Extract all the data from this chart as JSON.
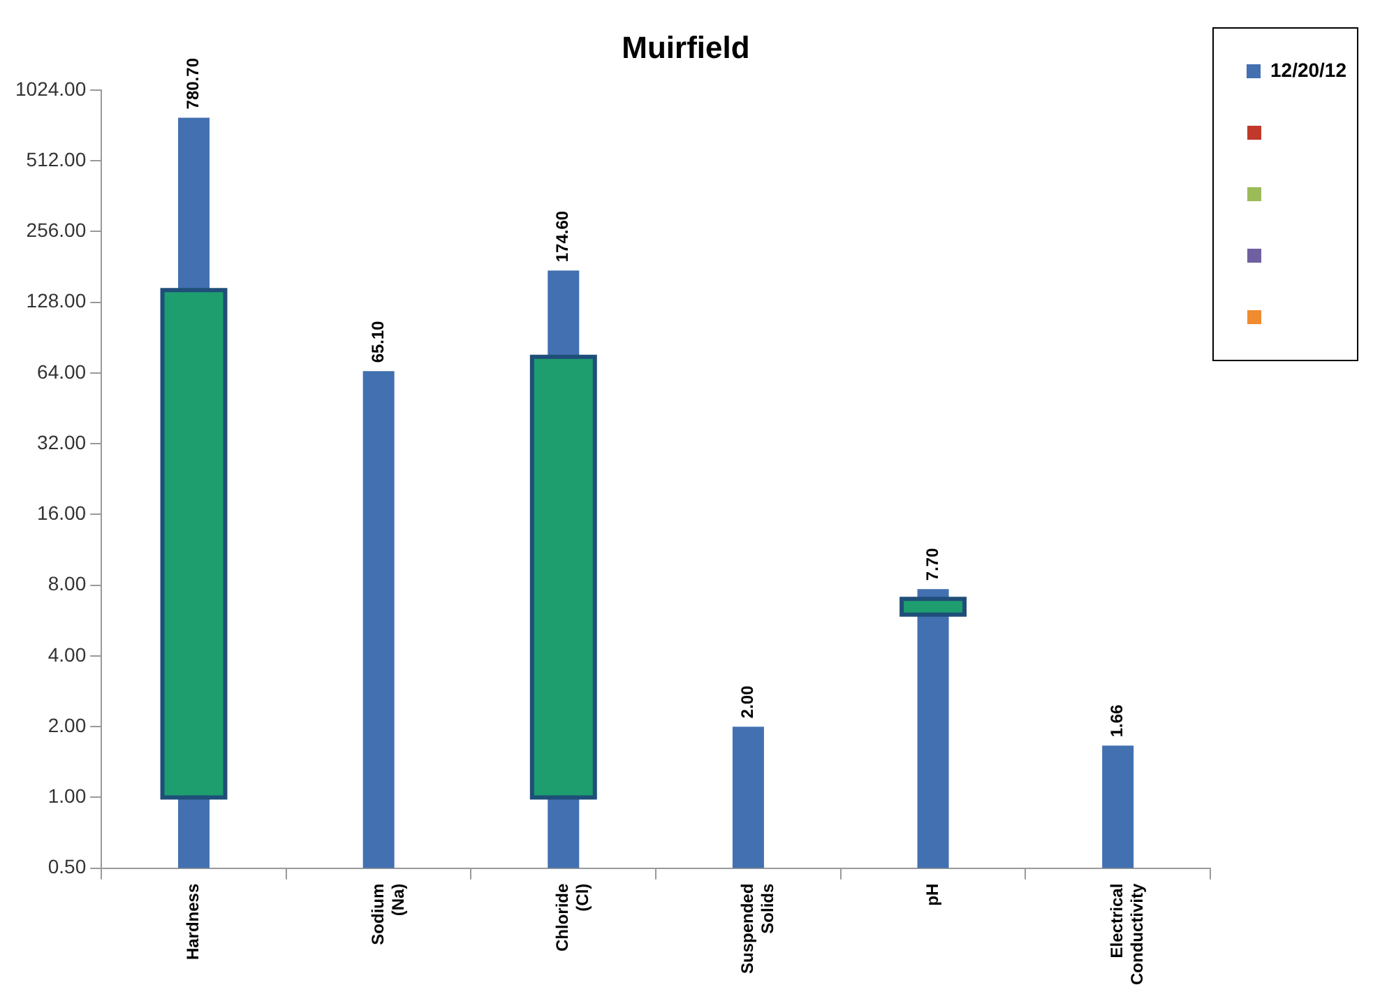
{
  "chart_data": {
    "type": "bar",
    "title": "Muirfield",
    "categories": [
      "Hardness",
      "Sodium (Na)",
      "Chloride (Cl)",
      "Suspended Solids",
      "pH",
      "Electrical Conductivity"
    ],
    "series": [
      {
        "name": "12/20/12",
        "color": "#4270b0",
        "values": [
          780.7,
          65.1,
          174.6,
          2,
          7.7,
          1.66
        ],
        "value_labels": [
          "780.70",
          "65.10",
          "174.60",
          "2.00",
          "7.70",
          "1.66"
        ]
      },
      {
        "color": "#1e9e6e",
        "base": [
          1,
          null,
          1,
          null,
          6,
          null
        ],
        "values": [
          143,
          null,
          74,
          null,
          1,
          null
        ]
      }
    ],
    "log": "y",
    "ylim": [
      0.5,
      1024
    ],
    "yticks": [
      {
        "value": 0.5,
        "label": "0.50"
      },
      {
        "value": 1,
        "label": "1.00"
      },
      {
        "value": 2,
        "label": "2.00"
      },
      {
        "value": 4,
        "label": "4.00"
      },
      {
        "value": 8,
        "label": "8.00"
      },
      {
        "value": 16,
        "label": "16.00"
      },
      {
        "value": 32,
        "label": "32.00"
      },
      {
        "value": 64,
        "label": "64.00"
      },
      {
        "value": 128,
        "label": "128.00"
      },
      {
        "value": 256,
        "label": "256.00"
      },
      {
        "value": 512,
        "label": "512.00"
      },
      {
        "value": 1024,
        "label": "1024.00"
      }
    ],
    "grid": false,
    "legend": "top right"
  }
}
